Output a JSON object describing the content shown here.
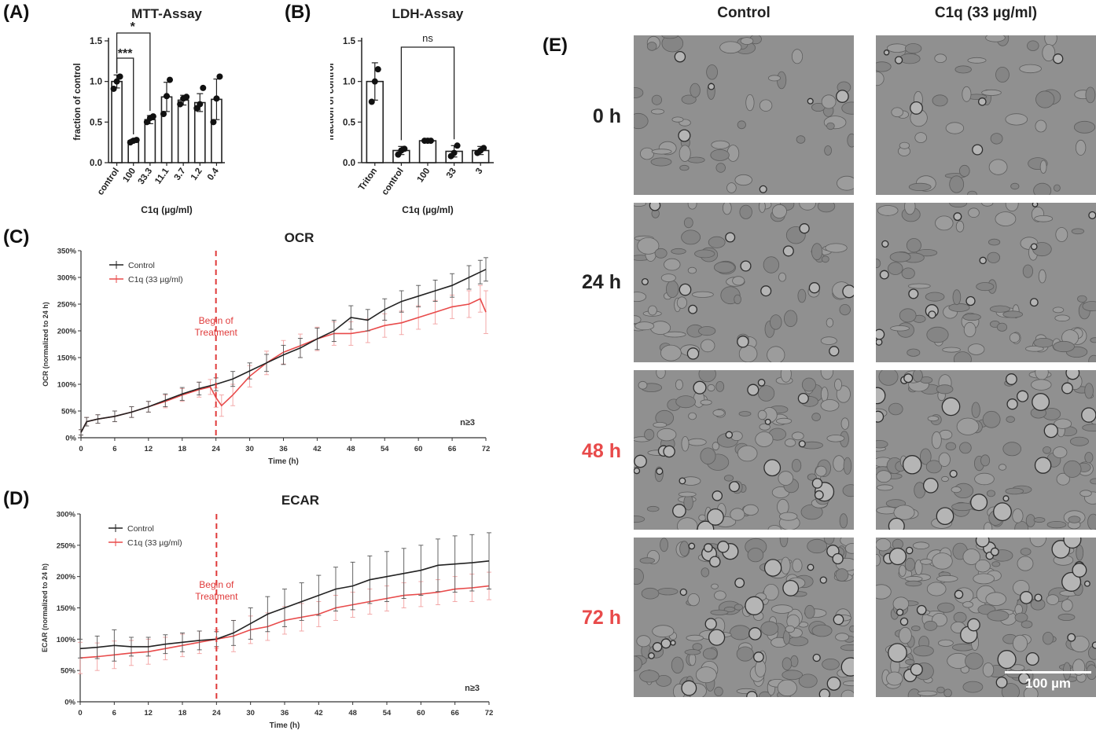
{
  "panels": {
    "A": "(A)",
    "B": "(B)",
    "C": "(C)",
    "D": "(D)",
    "E": "(E)"
  },
  "chart_data": [
    {
      "id": "A",
      "type": "bar",
      "title": "MTT-Assay",
      "xlabel": "C1q (µg/ml)",
      "ylabel": "fraction of control",
      "ylim": [
        0,
        1.5
      ],
      "yticks": [
        0.0,
        0.5,
        1.0,
        1.5
      ],
      "ytick_labels": [
        "0.0",
        "0.5",
        "1.0",
        "1.5"
      ],
      "categories": [
        "control",
        "100",
        "33.3",
        "11.1",
        "3.7",
        "1.2",
        "0.4"
      ],
      "values": [
        1.0,
        0.27,
        0.53,
        0.81,
        0.77,
        0.74,
        0.78
      ],
      "errors": [
        0.08,
        0.02,
        0.05,
        0.18,
        0.06,
        0.11,
        0.25
      ],
      "points": [
        [
          0.91,
          1.0,
          1.06
        ],
        [
          0.25,
          0.27,
          0.28
        ],
        [
          0.5,
          0.55,
          0.57
        ],
        [
          0.6,
          0.82,
          1.02
        ],
        [
          0.72,
          0.79,
          0.81
        ],
        [
          0.67,
          0.72,
          0.92
        ],
        [
          0.5,
          0.79,
          1.06
        ]
      ],
      "annotations": [
        {
          "label": "***",
          "from": 0,
          "to": 1
        },
        {
          "label": "*",
          "from": 0,
          "to": 2
        }
      ]
    },
    {
      "id": "B",
      "type": "bar",
      "title": "LDH-Assay",
      "xlabel": "C1q (µg/ml)",
      "ylabel": "fraction of control",
      "ylim": [
        0,
        1.5
      ],
      "yticks": [
        0.0,
        0.5,
        1.0,
        1.5
      ],
      "ytick_labels": [
        "0.0",
        "0.5",
        "1.0",
        "1.5"
      ],
      "categories": [
        "Triton",
        "control",
        "100",
        "33",
        "3"
      ],
      "values": [
        1.0,
        0.15,
        0.27,
        0.14,
        0.15
      ],
      "errors": [
        0.23,
        0.05,
        0.0,
        0.07,
        0.05
      ],
      "points": [
        [
          0.75,
          1.0,
          1.15
        ],
        [
          0.1,
          0.15,
          0.17
        ],
        [
          0.27,
          0.27,
          0.27
        ],
        [
          0.08,
          0.12,
          0.21
        ],
        [
          0.12,
          0.15,
          0.18
        ]
      ],
      "annotations": [
        {
          "label": "ns",
          "from": 1,
          "to": 3
        }
      ]
    },
    {
      "id": "C",
      "type": "line",
      "title": "OCR",
      "xlabel": "Time (h)",
      "ylabel": "OCR (normalized to 24 h)",
      "xlim": [
        0,
        72
      ],
      "ylim": [
        0,
        350
      ],
      "xticks": [
        0,
        6,
        12,
        18,
        24,
        30,
        36,
        42,
        48,
        54,
        60,
        66,
        72
      ],
      "yticks": [
        0,
        50,
        100,
        150,
        200,
        250,
        300,
        350
      ],
      "ytick_labels": [
        "0%",
        "50%",
        "100%",
        "150%",
        "200%",
        "250%",
        "300%",
        "350%"
      ],
      "legend_position": "top-left",
      "vline": {
        "x": 24,
        "label_line1": "Begin of",
        "label_line2": "Treatment"
      },
      "n_label": "n≥3",
      "series": [
        {
          "name": "Control",
          "color": "#222222",
          "x": [
            0,
            1,
            3,
            6,
            9,
            12,
            15,
            18,
            21,
            24,
            27,
            30,
            33,
            36,
            39,
            42,
            45,
            48,
            51,
            54,
            57,
            60,
            63,
            66,
            69,
            71,
            72
          ],
          "y": [
            10,
            30,
            35,
            40,
            48,
            58,
            70,
            82,
            92,
            100,
            110,
            125,
            140,
            155,
            168,
            185,
            200,
            225,
            220,
            240,
            255,
            265,
            275,
            285,
            300,
            310,
            315
          ],
          "err": [
            5,
            8,
            8,
            10,
            10,
            10,
            12,
            12,
            12,
            12,
            14,
            15,
            16,
            18,
            18,
            20,
            20,
            22,
            20,
            20,
            20,
            20,
            20,
            22,
            22,
            22,
            22
          ]
        },
        {
          "name": "C1q (33 µg/ml)",
          "color": "#e84a4a",
          "x": [
            0,
            1,
            3,
            6,
            9,
            12,
            15,
            18,
            21,
            23,
            24,
            25,
            27,
            30,
            33,
            36,
            39,
            42,
            45,
            48,
            51,
            54,
            57,
            60,
            63,
            66,
            69,
            71,
            72
          ],
          "y": [
            10,
            30,
            35,
            40,
            48,
            58,
            68,
            80,
            90,
            95,
            75,
            60,
            80,
            115,
            140,
            160,
            172,
            185,
            195,
            195,
            200,
            210,
            215,
            225,
            235,
            245,
            250,
            260,
            235
          ],
          "err": [
            5,
            8,
            8,
            10,
            10,
            10,
            12,
            12,
            14,
            14,
            18,
            20,
            20,
            20,
            22,
            22,
            22,
            22,
            22,
            22,
            22,
            22,
            22,
            22,
            22,
            22,
            25,
            25,
            40
          ]
        }
      ]
    },
    {
      "id": "D",
      "type": "line",
      "title": "ECAR",
      "xlabel": "Time (h)",
      "ylabel": "ECAR (normalized to 24 h)",
      "xlim": [
        0,
        72
      ],
      "ylim": [
        0,
        300
      ],
      "xticks": [
        0,
        6,
        12,
        18,
        24,
        30,
        36,
        42,
        48,
        54,
        60,
        66,
        72
      ],
      "yticks": [
        0,
        50,
        100,
        150,
        200,
        250,
        300
      ],
      "ytick_labels": [
        "0%",
        "50%",
        "100%",
        "150%",
        "200%",
        "250%",
        "300%"
      ],
      "legend_position": "top-left",
      "vline": {
        "x": 24,
        "label_line1": "Begin of",
        "label_line2": "Treatment"
      },
      "n_label": "n≥3",
      "series": [
        {
          "name": "Control",
          "color": "#222222",
          "x": [
            0,
            3,
            6,
            9,
            12,
            15,
            18,
            21,
            24,
            27,
            30,
            33,
            36,
            39,
            42,
            45,
            48,
            51,
            54,
            57,
            60,
            63,
            66,
            69,
            72
          ],
          "y": [
            85,
            87,
            90,
            88,
            88,
            92,
            95,
            98,
            100,
            110,
            125,
            140,
            150,
            160,
            170,
            180,
            185,
            195,
            200,
            205,
            210,
            218,
            220,
            222,
            225
          ],
          "err": [
            15,
            18,
            25,
            15,
            15,
            15,
            15,
            15,
            12,
            20,
            25,
            28,
            30,
            30,
            32,
            35,
            38,
            38,
            40,
            40,
            40,
            42,
            45,
            45,
            45
          ]
        },
        {
          "name": "C1q (33 µg/ml)",
          "color": "#e84a4a",
          "x": [
            0,
            3,
            6,
            9,
            12,
            15,
            18,
            21,
            24,
            27,
            30,
            33,
            36,
            39,
            42,
            45,
            48,
            51,
            54,
            57,
            60,
            63,
            66,
            69,
            72
          ],
          "y": [
            70,
            72,
            75,
            78,
            80,
            85,
            90,
            95,
            100,
            105,
            115,
            120,
            130,
            135,
            140,
            150,
            155,
            160,
            165,
            170,
            172,
            175,
            180,
            182,
            185
          ],
          "err": [
            25,
            22,
            22,
            20,
            20,
            18,
            18,
            18,
            15,
            25,
            22,
            22,
            22,
            22,
            20,
            20,
            20,
            20,
            20,
            20,
            20,
            20,
            20,
            22,
            22
          ]
        }
      ]
    }
  ],
  "micrographs": {
    "columns": [
      "Control",
      "C1q (33 µg/ml)"
    ],
    "rows": [
      {
        "label": "0 h",
        "color": "#222222"
      },
      {
        "label": "24 h",
        "color": "#222222"
      },
      {
        "label": "48 h",
        "color": "#e84a4a"
      },
      {
        "label": "72 h",
        "color": "#e84a4a"
      }
    ],
    "scale_bar": "100 µm"
  }
}
